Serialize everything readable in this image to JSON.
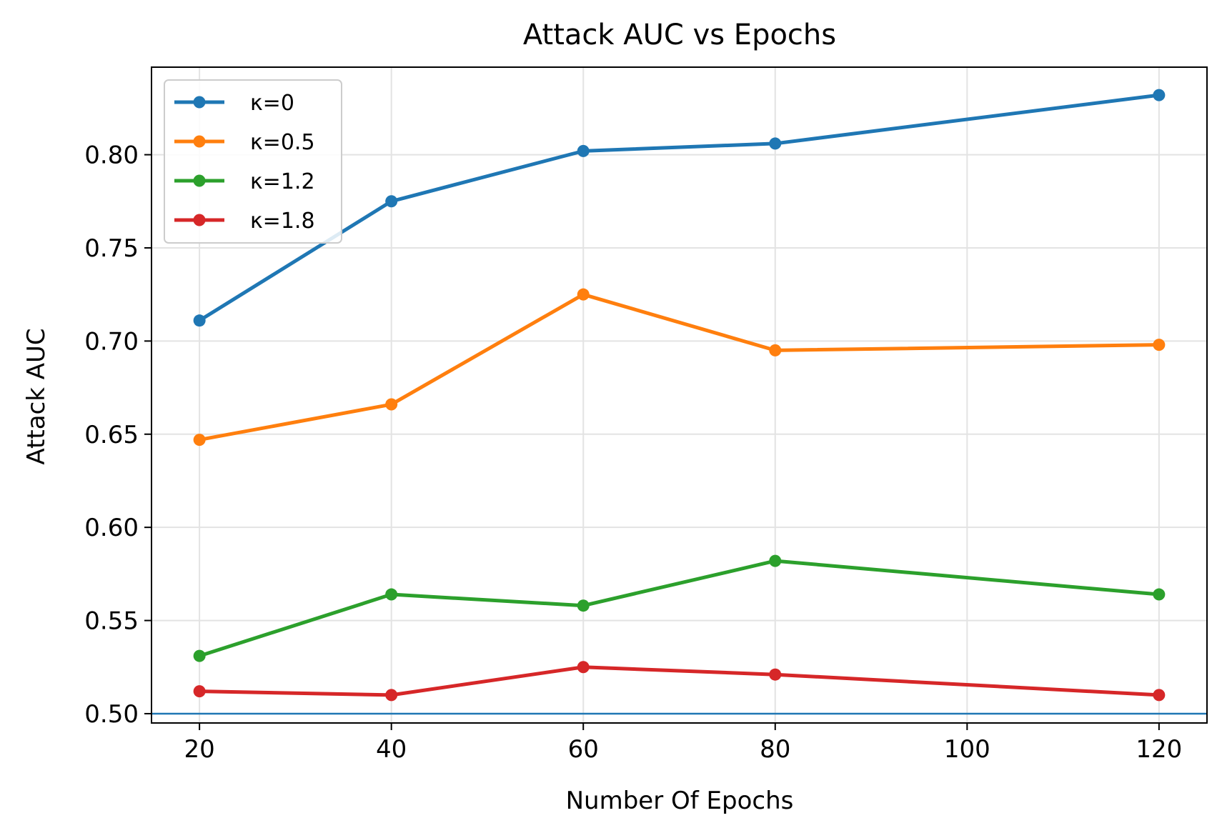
{
  "chart_data": {
    "type": "line",
    "title": "Attack AUC vs Epochs",
    "xlabel": "Number Of Epochs",
    "ylabel": "Attack AUC",
    "x": [
      20,
      40,
      60,
      80,
      120
    ],
    "xlim": [
      15,
      125
    ],
    "ylim": [
      0.495,
      0.847
    ],
    "xticks": [
      20,
      40,
      60,
      80,
      100,
      120
    ],
    "xtick_labels": [
      "20",
      "40",
      "60",
      "80",
      "100",
      "120"
    ],
    "yticks": [
      0.5,
      0.55,
      0.6,
      0.65,
      0.7,
      0.75,
      0.8
    ],
    "ytick_labels": [
      "0.50",
      "0.55",
      "0.60",
      "0.65",
      "0.70",
      "0.75",
      "0.80"
    ],
    "grid": true,
    "legend_position": "top-left",
    "reference_line": {
      "y": 0.5,
      "color": "#1f77b4"
    },
    "series": [
      {
        "name": "κ=0",
        "color": "#1f77b4",
        "values": [
          0.711,
          0.775,
          0.802,
          0.806,
          0.832
        ]
      },
      {
        "name": "κ=0.5",
        "color": "#ff7f0e",
        "values": [
          0.647,
          0.666,
          0.725,
          0.695,
          0.698
        ]
      },
      {
        "name": "κ=1.2",
        "color": "#2ca02c",
        "values": [
          0.531,
          0.564,
          0.558,
          0.582,
          0.564
        ]
      },
      {
        "name": "κ=1.8",
        "color": "#d62728",
        "values": [
          0.512,
          0.51,
          0.525,
          0.521,
          0.51
        ]
      }
    ]
  }
}
